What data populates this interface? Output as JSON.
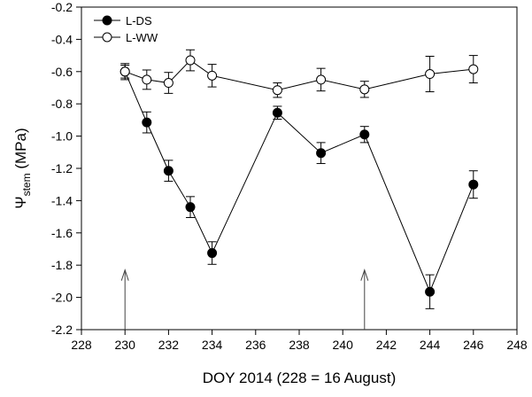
{
  "chart_data": {
    "type": "line",
    "xlabel": "DOY 2014 (228 =  16 August)",
    "ylabel": {
      "symbol": "Ψ",
      "subscript": "stem",
      "unit": " (MPa)"
    },
    "xlim": [
      228,
      248
    ],
    "ylim": [
      -2.2,
      -0.2
    ],
    "x_ticks": [
      228,
      230,
      232,
      234,
      236,
      238,
      240,
      242,
      244,
      246,
      248
    ],
    "y_ticks": [
      -2.2,
      -2.0,
      -1.8,
      -1.6,
      -1.4,
      -1.2,
      -1.0,
      -0.8,
      -0.6,
      -0.4,
      -0.2
    ],
    "y_tick_labels": [
      "-2.2",
      "-2.0",
      "-1.8",
      "-1.6",
      "-1.4",
      "-1.2",
      "-1.0",
      "-0.8",
      "-0.6",
      "-0.4",
      "-0.2"
    ],
    "grid": false,
    "legend_position": "top-left",
    "series": [
      {
        "name": "L-DS",
        "marker": "filled-circle",
        "color": "#000000",
        "x": [
          230,
          231,
          232,
          233,
          234,
          237,
          239,
          241,
          244,
          246
        ],
        "y": [
          -0.6,
          -0.915,
          -1.215,
          -1.44,
          -1.725,
          -0.855,
          -1.105,
          -0.99,
          -1.965,
          -1.3
        ],
        "err": [
          0.05,
          0.065,
          0.065,
          0.065,
          0.07,
          0.04,
          0.065,
          0.05,
          0.105,
          0.085
        ]
      },
      {
        "name": "L-WW",
        "marker": "open-circle",
        "color": "#000000",
        "x": [
          230,
          231,
          232,
          233,
          234,
          237,
          239,
          241,
          244,
          246
        ],
        "y": [
          -0.6,
          -0.65,
          -0.67,
          -0.53,
          -0.625,
          -0.715,
          -0.65,
          -0.71,
          -0.615,
          -0.585
        ],
        "err": [
          0.04,
          0.06,
          0.065,
          0.065,
          0.07,
          0.045,
          0.07,
          0.05,
          0.11,
          0.085
        ]
      }
    ],
    "annotations": [
      {
        "type": "arrow-up",
        "x": 230,
        "y_from": -2.2,
        "y_to": -1.83
      },
      {
        "type": "arrow-up",
        "x": 241,
        "y_from": -2.2,
        "y_to": -1.83
      }
    ]
  }
}
